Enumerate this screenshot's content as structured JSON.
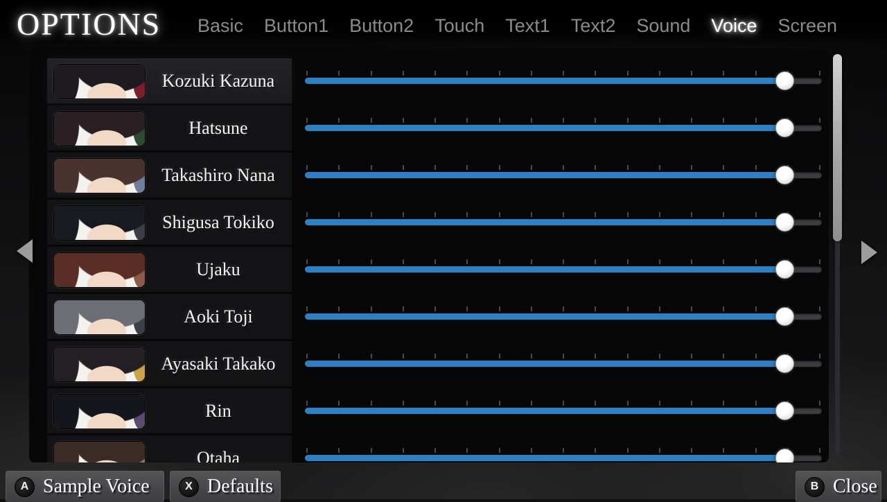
{
  "header": {
    "title": "OPTIONS",
    "tabs": [
      {
        "label": "Basic",
        "active": false
      },
      {
        "label": "Button1",
        "active": false
      },
      {
        "label": "Button2",
        "active": false
      },
      {
        "label": "Touch",
        "active": false
      },
      {
        "label": "Text1",
        "active": false
      },
      {
        "label": "Text2",
        "active": false
      },
      {
        "label": "Sound",
        "active": false
      },
      {
        "label": "Voice",
        "active": true
      },
      {
        "label": "Screen",
        "active": false
      }
    ]
  },
  "voice_list": {
    "slider": {
      "fraction": 0.928,
      "tick_count": 17,
      "fill_color": "#2e7fc4"
    },
    "characters": [
      {
        "name": "Kozuki Kazuna",
        "selected": true,
        "hair": "#1d1b20",
        "accent": "#7a1f2b"
      },
      {
        "name": "Hatsune",
        "selected": false,
        "hair": "#2a2024",
        "accent": "#2e4a34"
      },
      {
        "name": "Takashiro Nana",
        "selected": false,
        "hair": "#4a322e",
        "accent": "#6d7f99"
      },
      {
        "name": "Shigusa Tokiko",
        "selected": false,
        "hair": "#181a22",
        "accent": "#3a3f46"
      },
      {
        "name": "Ujaku",
        "selected": false,
        "hair": "#5a2e24",
        "accent": "#8a5a4a"
      },
      {
        "name": "Aoki Toji",
        "selected": false,
        "hair": "#6b6e75",
        "accent": "#3c3f45"
      },
      {
        "name": "Ayasaki Takako",
        "selected": false,
        "hair": "#241f22",
        "accent": "#caa24a"
      },
      {
        "name": "Rin",
        "selected": false,
        "hair": "#15151c",
        "accent": "#5a4a6e"
      },
      {
        "name": "Otaha",
        "selected": false,
        "hair": "#3a2c24",
        "accent": "#8a8078"
      }
    ]
  },
  "footer": {
    "sample_voice": {
      "badge": "A",
      "label": "Sample Voice"
    },
    "defaults": {
      "badge": "X",
      "label": "Defaults"
    },
    "close": {
      "badge": "B",
      "label": "Close"
    }
  },
  "colors": {
    "accent_blue": "#2e7fc4",
    "tab_inactive": "#8b8b8b",
    "tab_active": "#ffffff"
  }
}
